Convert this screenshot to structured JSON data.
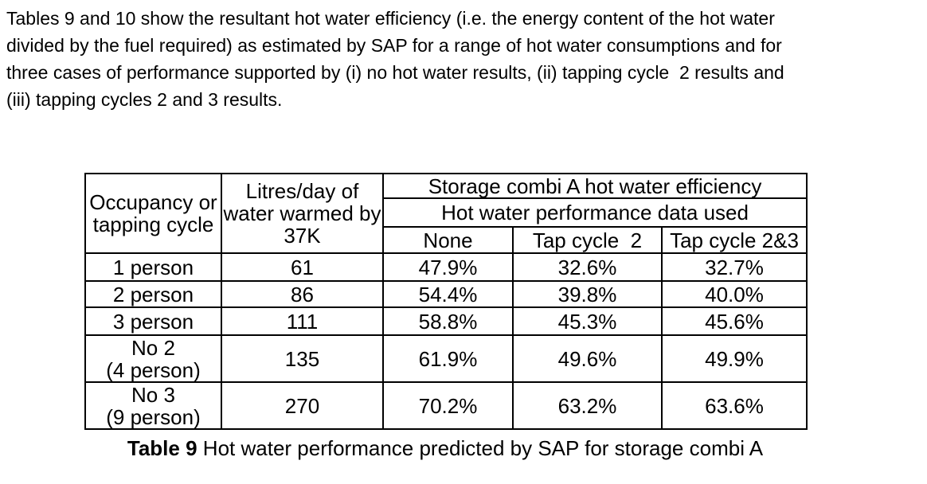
{
  "intro": {
    "lines": [
      "Tables 9 and 10 show the resultant hot water efficiency (i.e. the energy content of the hot water",
      "divided by the fuel required) as estimated by SAP for a range of hot water consumptions and for",
      "three cases of performance supported by (i) no hot water results, (ii) tapping cycle  2 results and",
      "(iii) tapping cycles 2 and 3 results."
    ]
  },
  "table": {
    "header": {
      "occupancy": "Occupancy or\ntapping cycle",
      "litres": "Litres/day of\nwater warmed by\n37K",
      "group_title": "Storage combi A hot water efficiency",
      "group_subtitle": "Hot water performance data used",
      "col_none": "None",
      "col_tap2": "Tap cycle  2",
      "col_tap23": "Tap cycle 2&3"
    },
    "rows": [
      {
        "occupancy": "1 person",
        "litres": "61",
        "none": "47.9%",
        "tap2": "32.6%",
        "tap23": "32.7%"
      },
      {
        "occupancy": "2 person",
        "litres": "86",
        "none": "54.4%",
        "tap2": "39.8%",
        "tap23": "40.0%"
      },
      {
        "occupancy": "3 person",
        "litres": "111",
        "none": "58.8%",
        "tap2": "45.3%",
        "tap23": "45.6%"
      },
      {
        "occupancy": "No 2\n(4 person)",
        "litres": "135",
        "none": "61.9%",
        "tap2": "49.6%",
        "tap23": "49.9%"
      },
      {
        "occupancy": "No 3\n(9 person)",
        "litres": "270",
        "none": "70.2%",
        "tap2": "63.2%",
        "tap23": "63.6%"
      }
    ],
    "caption": {
      "label": "Table 9",
      "text": "Hot water performance predicted by SAP for storage combi A"
    }
  },
  "colors": {
    "background": "#ffffff",
    "text": "#000000",
    "border": "#000000"
  }
}
